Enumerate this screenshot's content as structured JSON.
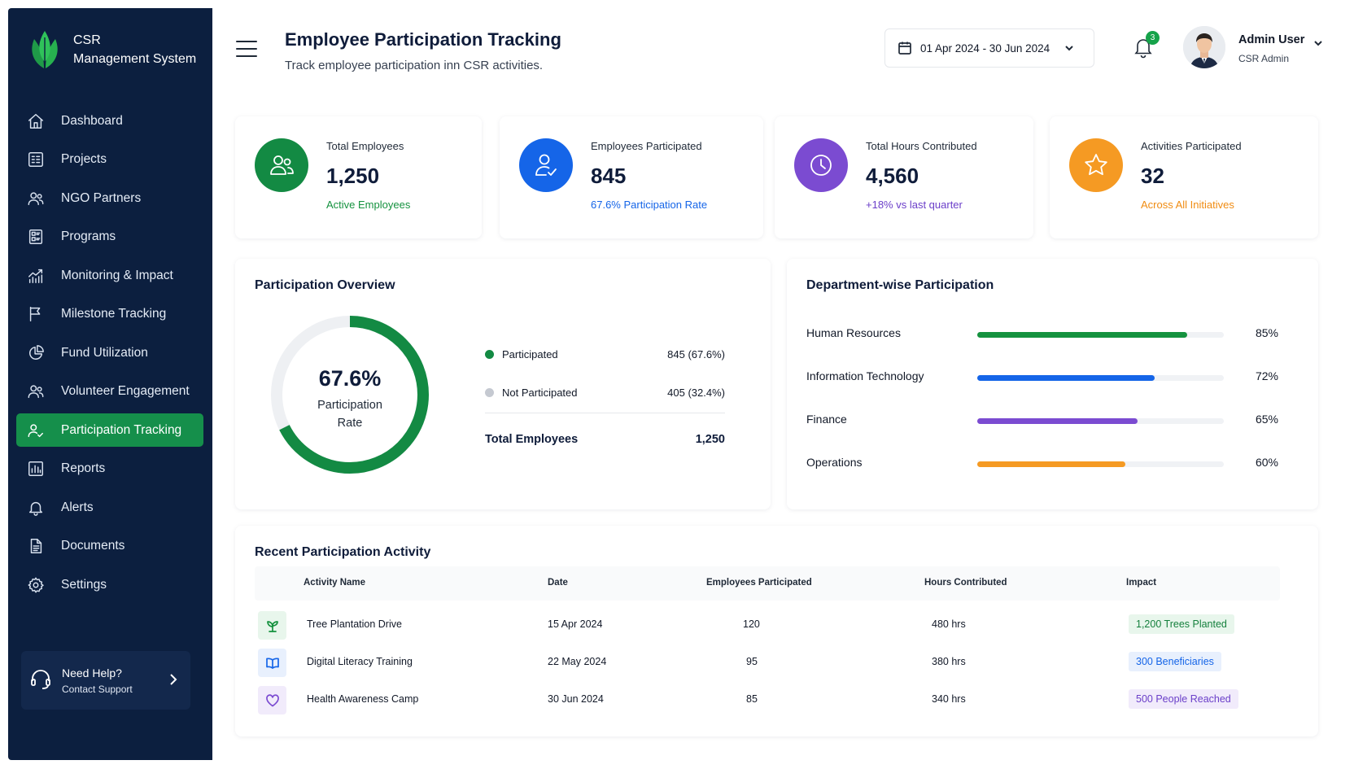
{
  "brand": {
    "line1": "CSR",
    "line2": "Management System"
  },
  "sidebar": {
    "items": [
      {
        "label": "Dashboard",
        "icon": "home-icon"
      },
      {
        "label": "Projects",
        "icon": "projects-icon"
      },
      {
        "label": "NGO Partners",
        "icon": "users-icon"
      },
      {
        "label": "Programs",
        "icon": "programs-icon"
      },
      {
        "label": "Monitoring & Impact",
        "icon": "chart-line-icon"
      },
      {
        "label": "Milestone Tracking",
        "icon": "flag-icon"
      },
      {
        "label": "Fund Utilization",
        "icon": "pie-chart-icon"
      },
      {
        "label": "Volunteer Engagement",
        "icon": "users-icon"
      },
      {
        "label": "Participation Tracking",
        "icon": "user-check-icon",
        "active": true
      },
      {
        "label": "Reports",
        "icon": "bar-chart-icon"
      },
      {
        "label": "Alerts",
        "icon": "bell-icon"
      },
      {
        "label": "Documents",
        "icon": "document-icon"
      },
      {
        "label": "Settings",
        "icon": "gear-icon"
      }
    ],
    "help": {
      "title": "Need Help?",
      "subtitle": "Contact Support"
    }
  },
  "header": {
    "title": "Employee Participation Tracking",
    "subtitle": "Track employee participation inn CSR activities.",
    "date_range": "01 Apr 2024 - 30 Jun 2024",
    "notification_count": "3",
    "user_name": "Admin User",
    "user_role": "CSR Admin"
  },
  "stats": [
    {
      "label": "Total Employees",
      "value": "1,250",
      "note": "Active Employees",
      "color": "#138a43",
      "note_color": "#15923f",
      "icon": "users-icon"
    },
    {
      "label": "Employees Participated",
      "value": "845",
      "note": "67.6% Participation Rate",
      "color": "#1565e8",
      "note_color": "#1565e8",
      "icon": "user-check-icon"
    },
    {
      "label": "Total Hours Contributed",
      "value": "4,560",
      "note": "+18% vs last quarter",
      "color": "#7b4bd1",
      "note_color": "#6b3fc9",
      "icon": "clock-icon"
    },
    {
      "label": "Activities Participated",
      "value": "32",
      "note": "Across All Initiatives",
      "color": "#f59a23",
      "note_color": "#f08c12",
      "icon": "star-icon"
    }
  ],
  "overview": {
    "title": "Participation Overview",
    "rate": "67.6%",
    "rate_fraction": 0.676,
    "rate_label_1": "Participation",
    "rate_label_2": "Rate",
    "legend": [
      {
        "label": "Participated",
        "value": "845 (67.6%)",
        "color": "#138a43"
      },
      {
        "label": "Not Participated",
        "value": "405 (32.4%)",
        "color": "#c5c9d1"
      }
    ],
    "total_label": "Total Employees",
    "total_value": "1,250"
  },
  "departments": {
    "title": "Department-wise Participation",
    "rows": [
      {
        "name": "Human Resources",
        "pct": 85,
        "pct_label": "85%",
        "color": "#15923f"
      },
      {
        "name": "Information Technology",
        "pct": 72,
        "pct_label": "72%",
        "color": "#1565e8"
      },
      {
        "name": "Finance",
        "pct": 65,
        "pct_label": "65%",
        "color": "#7b4bd1"
      },
      {
        "name": "Operations",
        "pct": 60,
        "pct_label": "60%",
        "color": "#f59a23"
      }
    ]
  },
  "activity": {
    "title": "Recent Participation Activity",
    "columns": [
      "Activity Name",
      "Date",
      "Employees Participated",
      "Hours Contributed",
      "Impact"
    ],
    "rows": [
      {
        "name": "Tree Plantation Drive",
        "date": "15 Apr 2024",
        "employees": "120",
        "hours": "480 hrs",
        "impact": "1,200 Trees Planted",
        "icon": "plant-icon",
        "color": "#15923f",
        "bg": "#e8f6ec"
      },
      {
        "name": "Digital Literacy Training",
        "date": "22 May 2024",
        "employees": "95",
        "hours": "380 hrs",
        "impact": "300 Beneficiaries",
        "icon": "book-icon",
        "color": "#1565e8",
        "bg": "#e8f0fd"
      },
      {
        "name": "Health Awareness Camp",
        "date": "30 Jun 2024",
        "employees": "85",
        "hours": "340 hrs",
        "impact": "500 People Reached",
        "icon": "heart-icon",
        "color": "#7b4bd1",
        "bg": "#f1ebfb"
      }
    ]
  }
}
